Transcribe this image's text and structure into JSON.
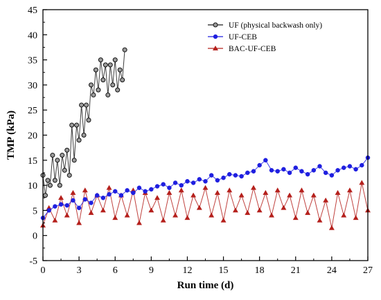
{
  "chart_data": {
    "type": "line",
    "xlabel": "Run time (d)",
    "ylabel": "TMP (kPa)",
    "xlim": [
      0,
      27
    ],
    "ylim": [
      -5,
      45
    ],
    "xticks": [
      0,
      3,
      6,
      9,
      12,
      15,
      18,
      21,
      24,
      27
    ],
    "yticks": [
      -5,
      0,
      5,
      10,
      15,
      20,
      25,
      30,
      35,
      40,
      45
    ],
    "grid": false,
    "legend_position": "top-right",
    "series": [
      {
        "name": "UF (physical backwash only)",
        "color": "#1a1a1a",
        "marker": "circle",
        "x": [
          0.0,
          0.2,
          0.4,
          0.6,
          0.8,
          1.0,
          1.2,
          1.4,
          1.6,
          1.8,
          2.0,
          2.2,
          2.4,
          2.6,
          2.8,
          3.0,
          3.2,
          3.4,
          3.6,
          3.8,
          4.0,
          4.2,
          4.4,
          4.6,
          4.8,
          5.0,
          5.2,
          5.4,
          5.6,
          5.8,
          6.0,
          6.2,
          6.4,
          6.6,
          6.8
        ],
        "values": [
          12,
          8,
          11,
          10,
          16,
          11,
          15,
          10,
          16,
          13,
          17,
          12,
          22,
          15,
          22,
          19,
          26,
          20,
          26,
          23,
          30,
          28,
          33,
          29,
          35,
          31,
          34,
          28,
          34,
          30,
          35,
          29,
          33,
          31,
          37
        ]
      },
      {
        "name": "UF-CEB",
        "color": "#1f1fe0",
        "marker": "circle",
        "x": [
          0.0,
          0.5,
          1.0,
          1.5,
          2.0,
          2.5,
          3.0,
          3.5,
          4.0,
          4.5,
          5.0,
          5.5,
          6.0,
          6.5,
          7.0,
          7.5,
          8.0,
          8.5,
          9.0,
          9.5,
          10.0,
          10.5,
          11.0,
          11.5,
          12.0,
          12.5,
          13.0,
          13.5,
          14.0,
          14.5,
          15.0,
          15.5,
          16.0,
          16.5,
          17.0,
          17.5,
          18.0,
          18.5,
          19.0,
          19.5,
          20.0,
          20.5,
          21.0,
          21.5,
          22.0,
          22.5,
          23.0,
          23.5,
          24.0,
          24.5,
          25.0,
          25.5,
          26.0,
          26.5,
          27.0
        ],
        "values": [
          3.5,
          5.0,
          5.8,
          6.2,
          6.0,
          7.0,
          5.5,
          7.2,
          6.5,
          8.0,
          7.5,
          8.2,
          8.8,
          8.0,
          9.0,
          8.5,
          9.5,
          8.8,
          9.2,
          9.8,
          10.2,
          9.5,
          10.5,
          10.0,
          10.8,
          10.5,
          11.2,
          10.8,
          12.0,
          11.0,
          11.5,
          12.2,
          12.0,
          11.8,
          12.5,
          12.8,
          14.0,
          15.0,
          13.0,
          12.8,
          13.2,
          12.5,
          13.5,
          12.8,
          12.2,
          13.0,
          13.8,
          12.5,
          12.0,
          13.0,
          13.5,
          13.8,
          13.2,
          14.0,
          15.5
        ]
      },
      {
        "name": "BAC-UF-CEB",
        "color": "#b5201c",
        "marker": "triangle",
        "x": [
          0.0,
          0.5,
          1.0,
          1.5,
          2.0,
          2.5,
          3.0,
          3.5,
          4.0,
          4.5,
          5.0,
          5.5,
          6.0,
          6.5,
          7.0,
          7.5,
          8.0,
          8.5,
          9.0,
          9.5,
          10.0,
          10.5,
          11.0,
          11.5,
          12.0,
          12.5,
          13.0,
          13.5,
          14.0,
          14.5,
          15.0,
          15.5,
          16.0,
          16.5,
          17.0,
          17.5,
          18.0,
          18.5,
          19.0,
          19.5,
          20.0,
          20.5,
          21.0,
          21.5,
          22.0,
          22.5,
          23.0,
          23.5,
          24.0,
          24.5,
          25.0,
          25.5,
          26.0,
          26.5,
          27.0
        ],
        "values": [
          2.0,
          5.5,
          3.0,
          7.5,
          4.0,
          8.5,
          2.5,
          9.0,
          4.5,
          8.0,
          5.0,
          9.5,
          3.5,
          8.0,
          4.0,
          9.0,
          2.5,
          8.5,
          5.0,
          7.5,
          3.0,
          8.5,
          4.0,
          9.0,
          3.5,
          8.0,
          5.5,
          9.5,
          4.0,
          8.5,
          3.0,
          9.0,
          5.0,
          8.0,
          4.5,
          9.5,
          5.0,
          8.5,
          4.0,
          9.0,
          5.5,
          8.0,
          3.5,
          9.0,
          4.5,
          8.0,
          3.0,
          7.0,
          1.5,
          8.5,
          4.0,
          9.0,
          3.5,
          10.5,
          5.0
        ]
      }
    ]
  }
}
